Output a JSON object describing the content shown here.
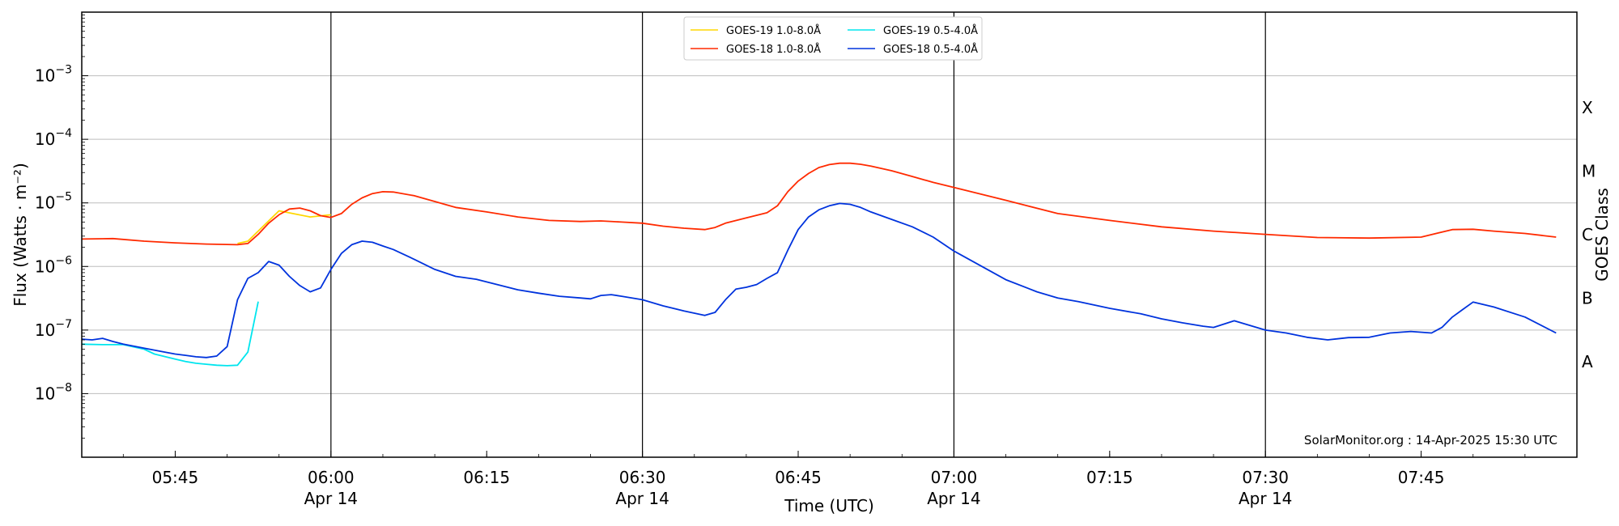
{
  "chart_data": {
    "type": "line",
    "title": "",
    "xlabel": "Time (UTC)",
    "ylabel": "Flux (Watts · m⁻²)",
    "ylabel_right": "GOES Class",
    "yscale": "log",
    "ylim": [
      1e-09,
      0.01
    ],
    "xlim": [
      "05:36",
      "08:00"
    ],
    "grid": "horizontal at decades",
    "legend_position": "top-center",
    "x_ticks": [
      {
        "time": "05:45",
        "label": "05:45",
        "sub": ""
      },
      {
        "time": "06:00",
        "label": "06:00",
        "sub": "Apr 14"
      },
      {
        "time": "06:15",
        "label": "06:15",
        "sub": ""
      },
      {
        "time": "06:30",
        "label": "06:30",
        "sub": "Apr 14"
      },
      {
        "time": "06:45",
        "label": "06:45",
        "sub": ""
      },
      {
        "time": "07:00",
        "label": "07:00",
        "sub": "Apr 14"
      },
      {
        "time": "07:15",
        "label": "07:15",
        "sub": ""
      },
      {
        "time": "07:30",
        "label": "07:30",
        "sub": "Apr 14"
      },
      {
        "time": "07:45",
        "label": "07:45",
        "sub": ""
      }
    ],
    "vertical_lines": [
      "06:00",
      "06:30",
      "07:00",
      "07:30"
    ],
    "y_ticks": [
      {
        "value": 0.001,
        "base": "10",
        "exp": "−3"
      },
      {
        "value": 0.0001,
        "base": "10",
        "exp": "−4"
      },
      {
        "value": 1e-05,
        "base": "10",
        "exp": "−5"
      },
      {
        "value": 1e-06,
        "base": "10",
        "exp": "−6"
      },
      {
        "value": 1e-07,
        "base": "10",
        "exp": "−7"
      },
      {
        "value": 1e-08,
        "base": "10",
        "exp": "−8"
      }
    ],
    "goes_classes": [
      {
        "label": "X",
        "value": 0.000316
      },
      {
        "label": "M",
        "value": 3.16e-05
      },
      {
        "label": "C",
        "value": 3.16e-06
      },
      {
        "label": "B",
        "value": 3.16e-07
      },
      {
        "label": "A",
        "value": 3.16e-08
      }
    ],
    "annotation": "SolarMonitor.org : 14-Apr-2025 15:30 UTC",
    "series": [
      {
        "name": "GOES-19 1.0-8.0Å",
        "color": "#ffd700",
        "x": [
          "05:51",
          "05:52",
          "05:55",
          "05:58",
          "06:00"
        ],
        "y": [
          2.3e-06,
          2.5e-06,
          7.5e-06,
          6e-06,
          6.5e-06
        ]
      },
      {
        "name": "GOES-18 1.0-8.0Å",
        "color": "#ff2a00",
        "x": [
          "05:36",
          "05:39",
          "05:42",
          "05:45",
          "05:48",
          "05:51",
          "05:52",
          "05:53",
          "05:54",
          "05:55",
          "05:56",
          "05:57",
          "05:58",
          "05:59",
          "06:00",
          "06:01",
          "06:02",
          "06:03",
          "06:04",
          "06:05",
          "06:06",
          "06:08",
          "06:10",
          "06:12",
          "06:15",
          "06:18",
          "06:21",
          "06:24",
          "06:26",
          "06:28",
          "06:30",
          "06:32",
          "06:34",
          "06:36",
          "06:37",
          "06:38",
          "06:40",
          "06:42",
          "06:43",
          "06:44",
          "06:45",
          "06:46",
          "06:47",
          "06:48",
          "06:49",
          "06:50",
          "06:51",
          "06:52",
          "06:54",
          "06:56",
          "06:58",
          "07:00",
          "07:05",
          "07:10",
          "07:15",
          "07:20",
          "07:25",
          "07:30",
          "07:35",
          "07:40",
          "07:45",
          "07:48",
          "07:50",
          "07:52",
          "07:55",
          "07:58"
        ],
        "y": [
          2.7e-06,
          2.75e-06,
          2.5e-06,
          2.35e-06,
          2.25e-06,
          2.2e-06,
          2.3e-06,
          3.2e-06,
          4.8e-06,
          6.5e-06,
          8e-06,
          8.3e-06,
          7.5e-06,
          6.3e-06,
          5.9e-06,
          6.8e-06,
          9.5e-06,
          1.2e-05,
          1.4e-05,
          1.5e-05,
          1.48e-05,
          1.3e-05,
          1.05e-05,
          8.5e-06,
          7.2e-06,
          6e-06,
          5.3e-06,
          5.1e-06,
          5.2e-06,
          5e-06,
          4.8e-06,
          4.3e-06,
          4e-06,
          3.8e-06,
          4.1e-06,
          4.8e-06,
          5.8e-06,
          7e-06,
          9e-06,
          1.5e-05,
          2.2e-05,
          2.9e-05,
          3.6e-05,
          4e-05,
          4.2e-05,
          4.2e-05,
          4.05e-05,
          3.8e-05,
          3.2e-05,
          2.6e-05,
          2.1e-05,
          1.75e-05,
          1.1e-05,
          6.8e-06,
          5.3e-06,
          4.2e-06,
          3.6e-06,
          3.2e-06,
          2.85e-06,
          2.8e-06,
          2.9e-06,
          3.8e-06,
          3.85e-06,
          3.6e-06,
          3.3e-06,
          2.9e-06
        ]
      },
      {
        "name": "GOES-19 0.5-4.0Å",
        "color": "#00e5ee",
        "x": [
          "05:36",
          "05:38",
          "05:40",
          "05:42",
          "05:43",
          "05:45",
          "05:46",
          "05:47",
          "05:48",
          "05:49",
          "05:50",
          "05:51",
          "05:52",
          "05:53"
        ],
        "y": [
          6e-08,
          5.9e-08,
          5.9e-08,
          5e-08,
          4.2e-08,
          3.5e-08,
          3.2e-08,
          3e-08,
          2.9e-08,
          2.8e-08,
          2.75e-08,
          2.8e-08,
          4.5e-08,
          2.8e-07
        ]
      },
      {
        "name": "GOES-18 0.5-4.0Å",
        "color": "#0033dd",
        "x": [
          "05:36",
          "05:37",
          "05:38",
          "05:39",
          "05:40",
          "05:42",
          "05:44",
          "05:45",
          "05:46",
          "05:47",
          "05:48",
          "05:49",
          "05:50",
          "05:51",
          "05:52",
          "05:53",
          "05:54",
          "05:55",
          "05:56",
          "05:57",
          "05:58",
          "05:59",
          "06:00",
          "06:01",
          "06:02",
          "06:03",
          "06:04",
          "06:05",
          "06:06",
          "06:08",
          "06:10",
          "06:12",
          "06:14",
          "06:16",
          "06:18",
          "06:20",
          "06:22",
          "06:24",
          "06:25",
          "06:26",
          "06:27",
          "06:28",
          "06:30",
          "06:32",
          "06:34",
          "06:36",
          "06:37",
          "06:38",
          "06:39",
          "06:40",
          "06:41",
          "06:42",
          "06:43",
          "06:44",
          "06:45",
          "06:46",
          "06:47",
          "06:48",
          "06:49",
          "06:50",
          "06:51",
          "06:52",
          "06:54",
          "06:56",
          "06:58",
          "07:00",
          "07:05",
          "07:08",
          "07:10",
          "07:12",
          "07:15",
          "07:18",
          "07:20",
          "07:22",
          "07:24",
          "07:25",
          "07:27",
          "07:30",
          "07:32",
          "07:34",
          "07:36",
          "07:38",
          "07:40",
          "07:42",
          "07:44",
          "07:46",
          "07:47",
          "07:48",
          "07:49",
          "07:50",
          "07:52",
          "07:55",
          "07:58"
        ],
        "y": [
          7.2e-08,
          7e-08,
          7.4e-08,
          6.6e-08,
          6e-08,
          5.2e-08,
          4.5e-08,
          4.2e-08,
          4e-08,
          3.8e-08,
          3.7e-08,
          3.9e-08,
          5.5e-08,
          3e-07,
          6.5e-07,
          8e-07,
          1.2e-06,
          1.05e-06,
          7e-07,
          5e-07,
          4e-07,
          4.6e-07,
          9e-07,
          1.6e-06,
          2.2e-06,
          2.5e-06,
          2.4e-06,
          2.1e-06,
          1.85e-06,
          1.3e-06,
          9e-07,
          7e-07,
          6.3e-07,
          5.2e-07,
          4.3e-07,
          3.8e-07,
          3.4e-07,
          3.2e-07,
          3.1e-07,
          3.5e-07,
          3.6e-07,
          3.4e-07,
          3e-07,
          2.4e-07,
          2e-07,
          1.7e-07,
          1.9e-07,
          3e-07,
          4.4e-07,
          4.7e-07,
          5.2e-07,
          6.5e-07,
          8e-07,
          1.8e-06,
          3.8e-06,
          6e-06,
          7.8e-06,
          9e-06,
          9.8e-06,
          9.5e-06,
          8.5e-06,
          7.2e-06,
          5.5e-06,
          4.2e-06,
          2.9e-06,
          1.75e-06,
          6.2e-07,
          4e-07,
          3.2e-07,
          2.8e-07,
          2.2e-07,
          1.8e-07,
          1.5e-07,
          1.3e-07,
          1.15e-07,
          1.1e-07,
          1.4e-07,
          1e-07,
          9e-08,
          7.7e-08,
          7e-08,
          7.6e-08,
          7.7e-08,
          9e-08,
          9.5e-08,
          9e-08,
          1.1e-07,
          1.6e-07,
          2.1e-07,
          2.75e-07,
          2.3e-07,
          1.6e-07,
          9e-08
        ]
      }
    ]
  }
}
